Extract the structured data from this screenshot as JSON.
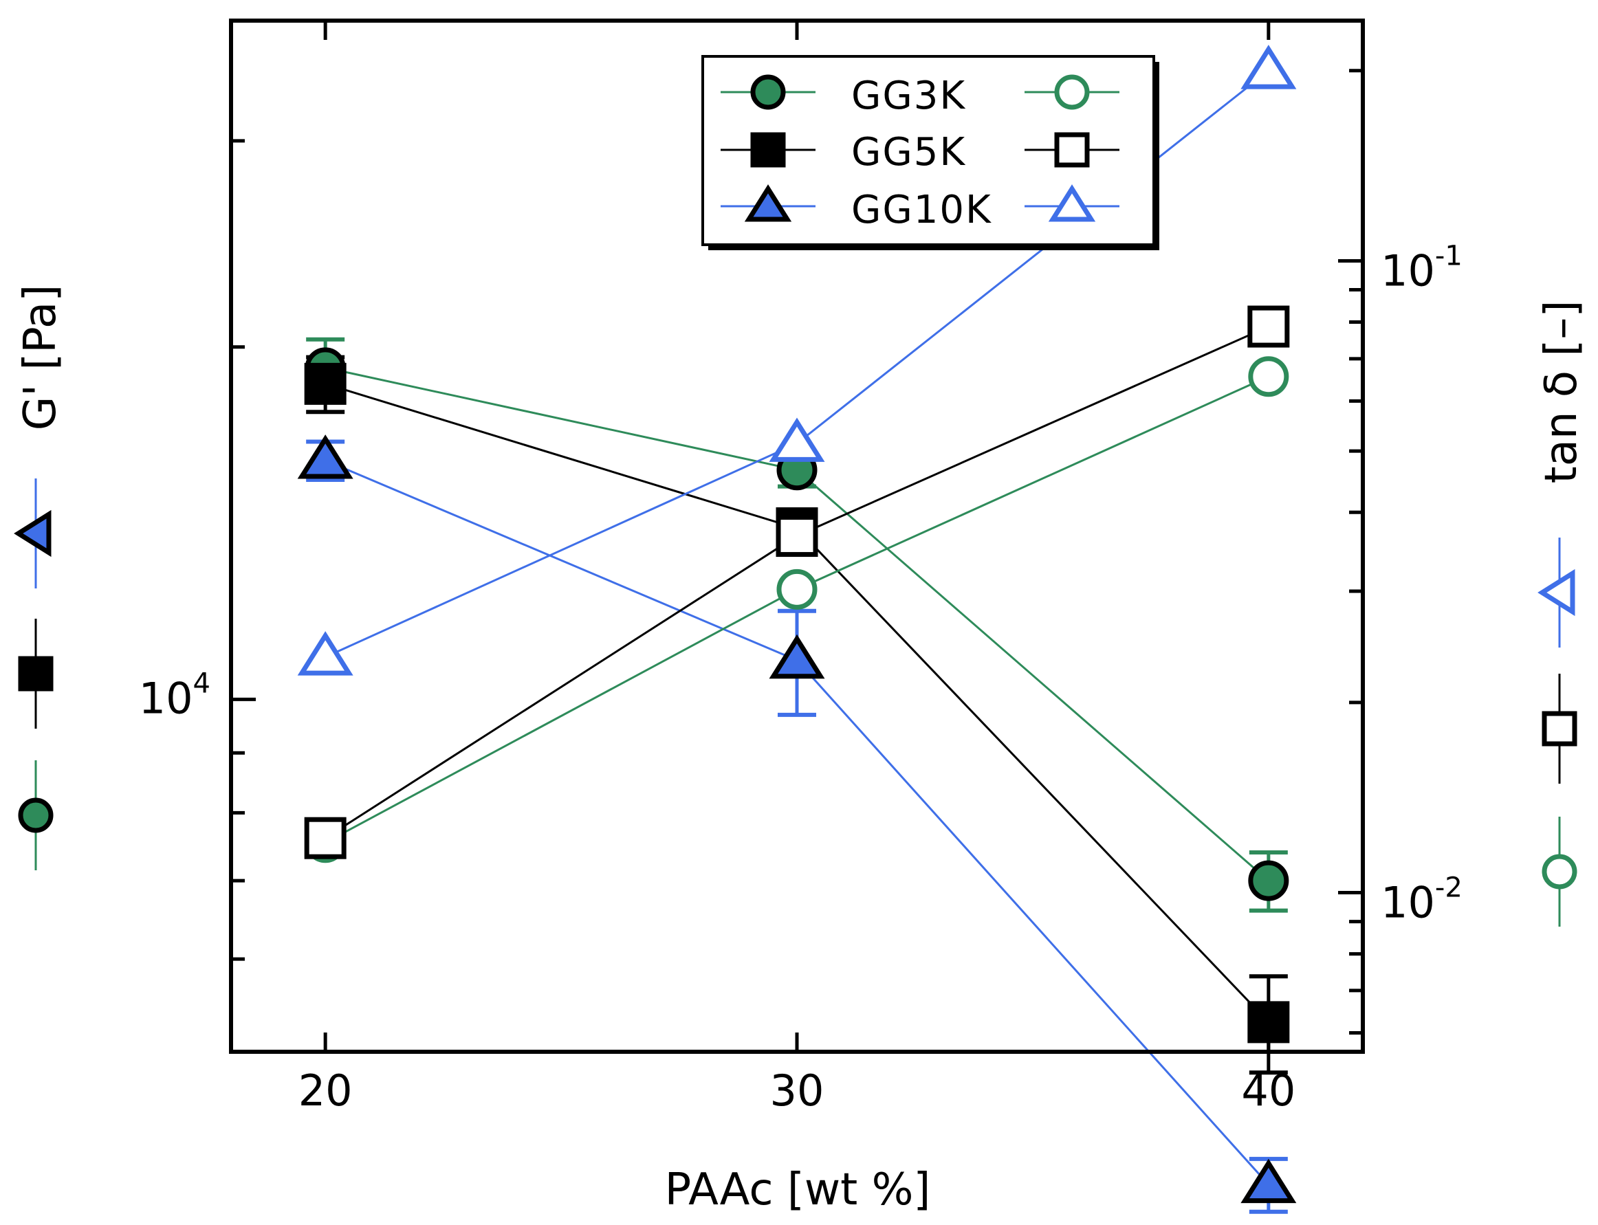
{
  "chart_data": {
    "type": "line",
    "xlabel": "PAAc [wt %]",
    "ylabel_left": "G' [Pa]",
    "ylabel_right": "tan δ [–]",
    "x": [
      20,
      30,
      40
    ],
    "xlim": [
      18,
      42
    ],
    "xticks": [
      "20",
      "30",
      "40"
    ],
    "left_axis": {
      "scale": "log",
      "ylim": [
        5000,
        38000
      ],
      "tick_value": 10000,
      "tick_label_base": "10",
      "tick_label_exp": "4"
    },
    "right_axis": {
      "scale": "log",
      "ylim": [
        0.0056,
        0.24
      ],
      "ticks": [
        {
          "value": 0.1,
          "base": "10",
          "exp": "-1"
        },
        {
          "value": 0.01,
          "base": "10",
          "exp": "-2"
        }
      ]
    },
    "legend": {
      "entries": [
        "GG3K",
        "GG5K",
        "GG10K"
      ],
      "placement": "top-center"
    },
    "colors": {
      "GG3K": "#2e8b5a",
      "GG5K": "#000000",
      "GG10K": "#3f6fe8"
    },
    "series": [
      {
        "name": "GG3K",
        "axis": "left",
        "quantity": "G'",
        "marker": "filled-circle",
        "values": [
          19200,
          15700,
          7000
        ],
        "errors": [
          1100,
          500,
          400
        ]
      },
      {
        "name": "GG5K",
        "axis": "left",
        "quantity": "G'",
        "marker": "filled-square",
        "values": [
          18600,
          14000,
          5300
        ],
        "errors": [
          1000,
          500,
          500
        ]
      },
      {
        "name": "GG10K",
        "axis": "left",
        "quantity": "G'",
        "marker": "filled-triangle",
        "values": [
          16000,
          10800,
          3850
        ],
        "errors": [
          600,
          1100,
          200
        ]
      },
      {
        "name": "GG3K",
        "axis": "right",
        "quantity": "tan δ",
        "marker": "open-circle",
        "values": [
          0.012,
          0.0302,
          0.0656
        ]
      },
      {
        "name": "GG5K",
        "axis": "right",
        "quantity": "tan δ",
        "marker": "open-square",
        "values": [
          0.0122,
          0.0367,
          0.0787
        ]
      },
      {
        "name": "GG10K",
        "axis": "right",
        "quantity": "tan δ",
        "marker": "open-triangle",
        "values": [
          0.0236,
          0.0514,
          0.2
        ]
      }
    ]
  }
}
